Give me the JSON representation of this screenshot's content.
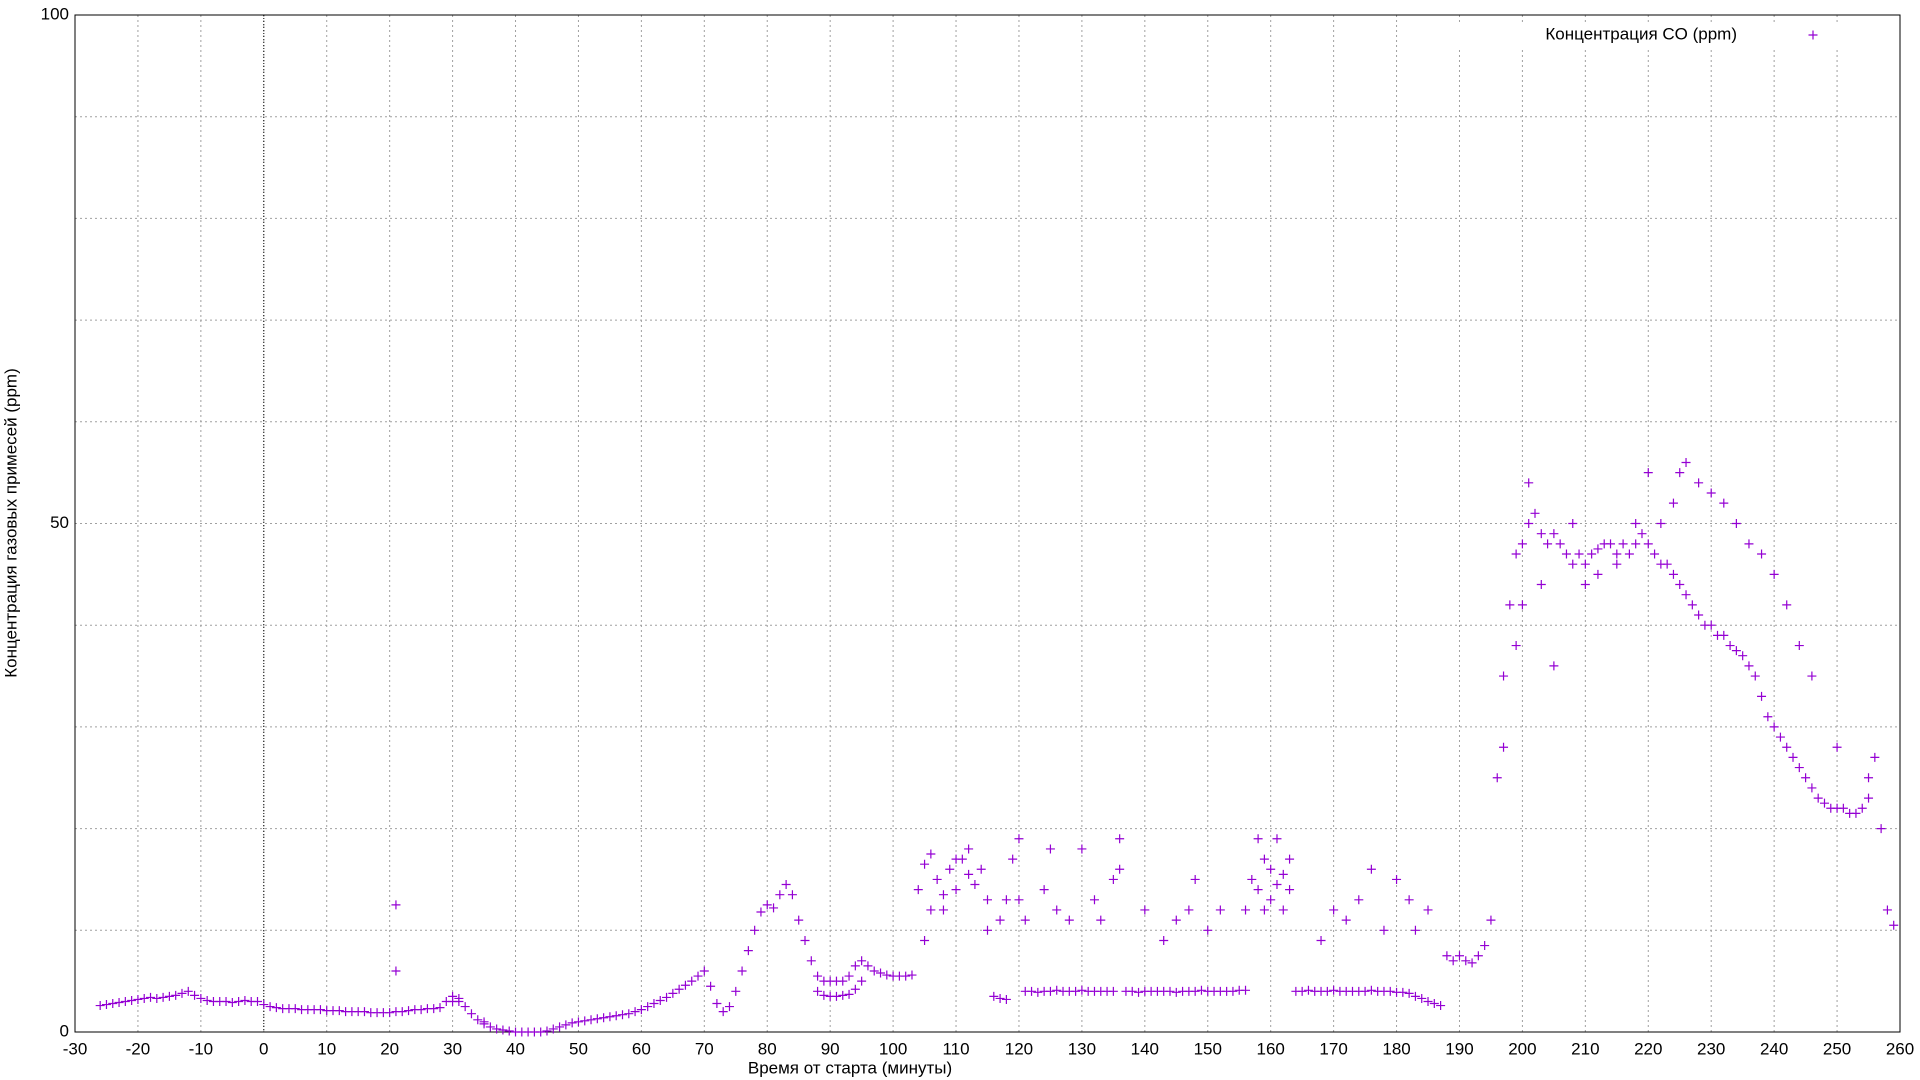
{
  "chart_data": {
    "type": "scatter",
    "x_label": "Время от старта (минуты)",
    "y_label": "Концентрация газовых примесей (ppm)",
    "xlim": [
      -30,
      260
    ],
    "ylim": [
      0,
      100
    ],
    "xticks": [
      -30,
      -20,
      -10,
      0,
      10,
      20,
      30,
      40,
      50,
      60,
      70,
      80,
      90,
      100,
      110,
      120,
      130,
      140,
      150,
      160,
      170,
      180,
      190,
      200,
      210,
      220,
      230,
      240,
      250,
      260
    ],
    "yticks": [
      0,
      50,
      100
    ],
    "y_minor_grid": [
      10,
      20,
      30,
      40,
      60,
      70,
      80,
      90
    ],
    "grid": true,
    "zero_axis": true,
    "legend": "top-right",
    "series": [
      {
        "name": "Концентрация CO (ppm)",
        "color": "#9400d3",
        "x": [
          -26,
          -25,
          -24,
          -23,
          -22,
          -21,
          -20,
          -19,
          -18,
          -17,
          -16,
          -15,
          -14,
          -13,
          -12,
          -11,
          -10,
          -9,
          -8,
          -7,
          -6,
          -5,
          -4,
          -3,
          -2,
          -1,
          0,
          1,
          2,
          3,
          4,
          5,
          6,
          7,
          8,
          9,
          10,
          11,
          12,
          13,
          14,
          15,
          16,
          17,
          18,
          19,
          20,
          21,
          22,
          23,
          24,
          25,
          26,
          27,
          28,
          29,
          30,
          31,
          32,
          33,
          34,
          35,
          36,
          37,
          38,
          39,
          40,
          41,
          42,
          43,
          44,
          45,
          46,
          47,
          48,
          49,
          50,
          51,
          52,
          53,
          54,
          55,
          56,
          57,
          58,
          59,
          60,
          61,
          62,
          63,
          64,
          65,
          66,
          67,
          68,
          69,
          70,
          71,
          72,
          73,
          74,
          75,
          76,
          77,
          78,
          79,
          80,
          81,
          82,
          83,
          84,
          85,
          86,
          87,
          88,
          89,
          90,
          91,
          92,
          93,
          94,
          95,
          96,
          97,
          98,
          99,
          100,
          101,
          102,
          103,
          104,
          105,
          106,
          107,
          108,
          109,
          110,
          111,
          112,
          113,
          114,
          115,
          116,
          117,
          118,
          119,
          120,
          121,
          122,
          123,
          124,
          125,
          126,
          127,
          128,
          129,
          130,
          131,
          132,
          133,
          134,
          135,
          136,
          137,
          138,
          139,
          140,
          141,
          142,
          143,
          144,
          145,
          146,
          147,
          148,
          149,
          150,
          151,
          152,
          153,
          154,
          155,
          156,
          157,
          158,
          159,
          160,
          161,
          162,
          163,
          164,
          165,
          166,
          167,
          168,
          169,
          170,
          171,
          172,
          173,
          174,
          175,
          176,
          177,
          178,
          179,
          180,
          181,
          182,
          183,
          184,
          185,
          186,
          187,
          188,
          189,
          190,
          191,
          192,
          193,
          194,
          195,
          196,
          197,
          198,
          199,
          200,
          201,
          202,
          203,
          204,
          205,
          206,
          207,
          208,
          209,
          210,
          211,
          212,
          213,
          214,
          215,
          216,
          217,
          218,
          219,
          220,
          221,
          222,
          223,
          224,
          225,
          226,
          227,
          228,
          229,
          230,
          231,
          232,
          233,
          234,
          235,
          236,
          237,
          238,
          239,
          240,
          241,
          242,
          243,
          244,
          245,
          246,
          247,
          248,
          249,
          250,
          251,
          252,
          253,
          254,
          255,
          256,
          257,
          258,
          259,
          21,
          21,
          30,
          31,
          35,
          88,
          89,
          90,
          91,
          92,
          93,
          94,
          95,
          105,
          106,
          108,
          110,
          112,
          115,
          117,
          118,
          120,
          121,
          124,
          125,
          126,
          128,
          130,
          132,
          133,
          135,
          136,
          140,
          143,
          145,
          147,
          148,
          150,
          152,
          156,
          158,
          159,
          160,
          161,
          162,
          163,
          168,
          170,
          172,
          174,
          176,
          178,
          180,
          182,
          183,
          185,
          197,
          199,
          200,
          201,
          203,
          205,
          208,
          210,
          212,
          215,
          218,
          220,
          222,
          224,
          225,
          226,
          228,
          230,
          232,
          234,
          236,
          238,
          240,
          242,
          244,
          246,
          250,
          255
        ],
        "values": [
          2.6,
          2.7,
          2.8,
          2.9,
          3.0,
          3.1,
          3.2,
          3.3,
          3.4,
          3.3,
          3.4,
          3.5,
          3.6,
          3.8,
          4.0,
          3.6,
          3.3,
          3.1,
          3.0,
          3.0,
          3.0,
          2.9,
          3.0,
          3.1,
          3.0,
          3.0,
          2.7,
          2.5,
          2.4,
          2.3,
          2.3,
          2.3,
          2.2,
          2.2,
          2.2,
          2.2,
          2.1,
          2.1,
          2.1,
          2.0,
          2.0,
          2.0,
          2.0,
          1.9,
          1.9,
          1.9,
          1.9,
          2.0,
          2.0,
          2.1,
          2.2,
          2.2,
          2.3,
          2.3,
          2.4,
          3.0,
          3.5,
          3.3,
          2.5,
          1.8,
          1.2,
          0.8,
          0.5,
          0.3,
          0.2,
          0.1,
          0.0,
          0.0,
          0.0,
          0.0,
          0.0,
          0.1,
          0.3,
          0.5,
          0.7,
          0.9,
          1.0,
          1.1,
          1.2,
          1.3,
          1.4,
          1.5,
          1.6,
          1.7,
          1.8,
          2.0,
          2.2,
          2.5,
          2.8,
          3.1,
          3.4,
          3.8,
          4.2,
          4.6,
          5.0,
          5.5,
          6.0,
          4.5,
          2.8,
          2.0,
          2.5,
          4.0,
          6.0,
          8.0,
          10.0,
          11.8,
          12.5,
          12.2,
          13.5,
          14.5,
          13.5,
          11.0,
          9.0,
          7.0,
          5.5,
          5.0,
          5.0,
          5.0,
          5.0,
          5.5,
          6.5,
          7.0,
          6.5,
          6.0,
          5.8,
          5.6,
          5.5,
          5.5,
          5.5,
          5.6,
          14.0,
          16.5,
          12.0,
          15.0,
          13.5,
          16.0,
          14.0,
          17.0,
          15.5,
          14.5,
          16.0,
          13.0,
          3.5,
          3.3,
          3.2,
          17.0,
          19.0,
          4.0,
          4.0,
          3.9,
          4.0,
          4.0,
          4.1,
          4.0,
          4.0,
          4.0,
          4.1,
          4.0,
          4.0,
          4.0,
          4.0,
          4.0,
          16.0,
          4.0,
          4.0,
          3.9,
          4.0,
          4.0,
          4.0,
          4.0,
          4.0,
          3.9,
          4.0,
          4.0,
          4.0,
          4.1,
          4.0,
          4.0,
          4.0,
          4.0,
          4.0,
          4.1,
          4.1,
          15.0,
          14.0,
          17.0,
          16.0,
          14.5,
          15.5,
          14.0,
          4.0,
          4.0,
          4.1,
          4.0,
          4.0,
          4.0,
          4.1,
          4.0,
          4.0,
          4.0,
          4.0,
          4.0,
          4.1,
          4.0,
          4.0,
          4.0,
          3.9,
          3.9,
          3.8,
          3.5,
          3.3,
          3.0,
          2.8,
          2.6,
          7.5,
          7.0,
          7.5,
          7.0,
          6.8,
          7.5,
          8.5,
          11.0,
          25.0,
          35.0,
          42.0,
          47.0,
          48.0,
          50.0,
          51.0,
          49.0,
          48.0,
          49.0,
          48.0,
          47.0,
          46.0,
          47.0,
          46.0,
          47.0,
          47.5,
          48.0,
          48.0,
          47.0,
          48.0,
          47.0,
          48.0,
          49.0,
          48.0,
          47.0,
          46.0,
          46.0,
          45.0,
          44.0,
          43.0,
          42.0,
          41.0,
          40.0,
          40.0,
          39.0,
          39.0,
          38.0,
          37.5,
          37.0,
          36.0,
          35.0,
          33.0,
          31.0,
          30.0,
          29.0,
          28.0,
          27.0,
          26.0,
          25.0,
          24.0,
          23.0,
          22.5,
          22.0,
          22.0,
          22.0,
          21.5,
          21.5,
          22.0,
          23.0,
          27.0,
          20.0,
          12.0,
          10.5,
          6.0,
          12.5,
          3.0,
          3.0,
          1.0,
          4.0,
          3.6,
          3.5,
          3.5,
          3.6,
          3.7,
          4.2,
          5.0,
          9.0,
          17.5,
          12.0,
          17.0,
          18.0,
          10.0,
          11.0,
          13.0,
          13.0,
          11.0,
          14.0,
          18.0,
          12.0,
          11.0,
          18.0,
          13.0,
          11.0,
          15.0,
          19.0,
          12.0,
          9.0,
          11.0,
          12.0,
          15.0,
          10.0,
          12.0,
          12.0,
          19.0,
          12.0,
          13.0,
          19.0,
          12.0,
          17.0,
          9.0,
          12.0,
          11.0,
          13.0,
          16.0,
          10.0,
          15.0,
          13.0,
          10.0,
          12.0,
          28.0,
          38.0,
          42.0,
          54.0,
          44.0,
          36.0,
          50.0,
          44.0,
          45.0,
          46.0,
          50.0,
          55.0,
          50.0,
          52.0,
          55.0,
          56.0,
          54.0,
          53.0,
          52.0,
          50.0,
          48.0,
          47.0,
          45.0,
          42.0,
          38.0,
          35.0,
          28.0,
          25.0
        ]
      }
    ]
  }
}
